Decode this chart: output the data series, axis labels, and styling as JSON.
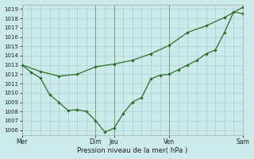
{
  "xlabel": "Pression niveau de la mer( hPa )",
  "ylim": [
    1005.5,
    1019.5
  ],
  "yticks": [
    1006,
    1007,
    1008,
    1009,
    1010,
    1011,
    1012,
    1013,
    1014,
    1015,
    1016,
    1017,
    1018,
    1019
  ],
  "bg_color": "#cceaea",
  "grid_color": "#aacece",
  "line_color": "#2d6e2d",
  "xtick_labels": [
    "Mer",
    "Dim",
    "Jeu",
    "Ven",
    "Sam"
  ],
  "xtick_positions": [
    0,
    8,
    10,
    16,
    24
  ],
  "vline_positions": [
    0,
    8,
    10,
    16,
    24
  ],
  "line_upper_x": [
    0,
    2,
    4,
    6,
    8,
    10,
    12,
    14,
    16,
    18,
    20,
    22,
    24
  ],
  "line_upper_y": [
    1013.0,
    1012.3,
    1011.8,
    1012.0,
    1012.8,
    1013.1,
    1013.5,
    1014.2,
    1015.1,
    1016.5,
    1017.2,
    1018.1,
    1019.2
  ],
  "line_lower_x": [
    0,
    1,
    2,
    3,
    4,
    5,
    6,
    7,
    8,
    9,
    10,
    11,
    12,
    13,
    14,
    15,
    16,
    17,
    18,
    19,
    20,
    21,
    22,
    23,
    24
  ],
  "line_lower_y": [
    1013.0,
    1012.2,
    1011.6,
    1009.8,
    1009.0,
    1008.1,
    1008.2,
    1008.0,
    1007.0,
    1005.8,
    1006.2,
    1007.8,
    1009.0,
    1009.5,
    1011.5,
    1011.9,
    1012.0,
    1012.5,
    1013.0,
    1013.5,
    1014.2,
    1014.6,
    1016.5,
    1018.7,
    1018.5
  ]
}
